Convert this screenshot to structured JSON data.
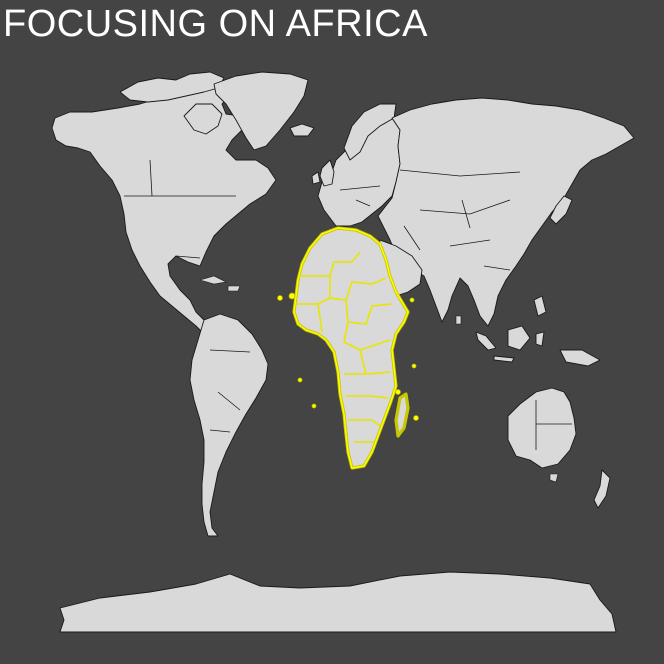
{
  "title": "FOCUSING ON AFRICA",
  "highlight_region": "Africa",
  "colors": {
    "background": "#444444",
    "land": "#d9d9d9",
    "border": "#1a1a1a",
    "highlight": "#ffff00",
    "title": "#ffffff"
  }
}
